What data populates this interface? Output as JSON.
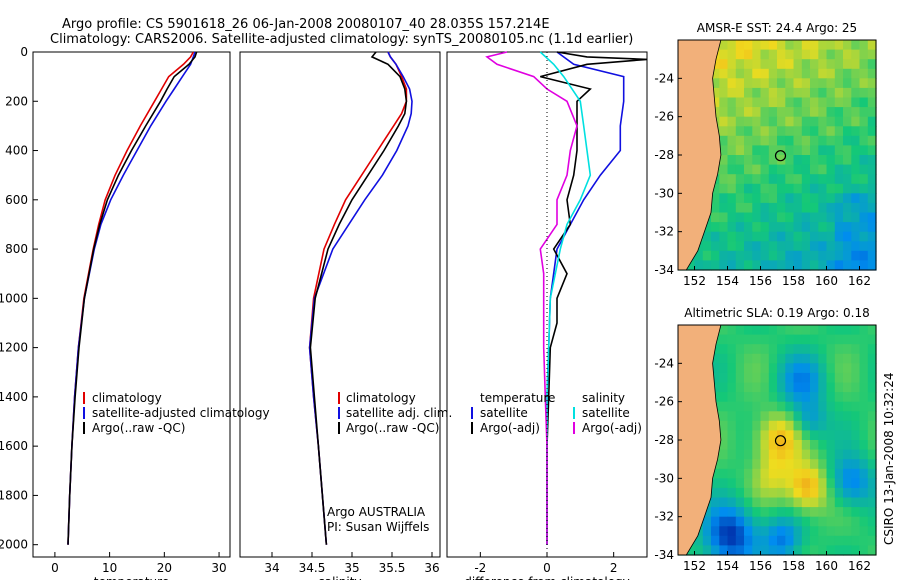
{
  "header": {
    "title_line1": "Argo profile: CS 5901618_26 06-Jan-2008 20080107_40 28.035S 157.214E",
    "title_line2": "Climatology: CARS2006. Satellite-adjusted climatology: synTS_20080105.nc (1.1d earlier)"
  },
  "side_label": "CSIRO 13-Jan-2008 10:32:24",
  "credit": {
    "line1": "Argo AUSTRALIA",
    "line2": "PI: Susan Wijffels"
  },
  "colors": {
    "red": "#e00000",
    "blue": "#1010e0",
    "black": "#000000",
    "cyan": "#00e0e0",
    "magenta": "#e000e0",
    "land": "#f2b07a"
  },
  "chart_data": [
    {
      "type": "line",
      "id": "temperature",
      "xlabel": "temperature",
      "xlim": [
        -4,
        32
      ],
      "ylim": [
        2050,
        0
      ],
      "xticks": [
        0,
        10,
        20,
        30
      ],
      "yticks": [
        0,
        200,
        400,
        600,
        800,
        1000,
        1200,
        1400,
        1600,
        1800,
        2000
      ],
      "depth": [
        0,
        20,
        50,
        100,
        150,
        200,
        300,
        400,
        500,
        600,
        700,
        800,
        1000,
        1200,
        1400,
        1600,
        1800,
        2000
      ],
      "series": [
        {
          "name": "climatology",
          "color": "red",
          "values": [
            25.3,
            24.8,
            23.5,
            20.8,
            19.5,
            18.2,
            15.6,
            13.2,
            11.0,
            9.2,
            8.0,
            7.0,
            5.3,
            4.3,
            3.6,
            3.1,
            2.7,
            2.4
          ]
        },
        {
          "name": "satellite-adjusted climatology",
          "color": "blue",
          "values": [
            25.6,
            25.3,
            24.8,
            23.3,
            21.8,
            20.3,
            17.5,
            15.0,
            12.5,
            10.2,
            8.4,
            7.2,
            5.4,
            4.3,
            3.6,
            3.1,
            2.7,
            2.4
          ]
        },
        {
          "name": "Argo(..raw -QC)",
          "color": "black",
          "values": [
            25.9,
            25.6,
            24.5,
            21.8,
            20.5,
            19.3,
            16.6,
            14.0,
            11.6,
            9.6,
            8.2,
            7.1,
            5.4,
            4.4,
            3.7,
            3.1,
            2.7,
            2.4
          ]
        }
      ],
      "legend": [
        "climatology",
        "satellite-adjusted climatology",
        "Argo(..raw -QC)"
      ]
    },
    {
      "type": "line",
      "id": "salinity",
      "xlabel": "salinity",
      "xlim": [
        33.6,
        36.1
      ],
      "ylim": [
        2050,
        0
      ],
      "xticks": [
        34,
        34.5,
        35,
        35.5,
        36
      ],
      "depth": [
        0,
        20,
        50,
        100,
        150,
        200,
        250,
        300,
        400,
        500,
        600,
        700,
        800,
        1000,
        1200,
        1400,
        1600,
        1800,
        2000
      ],
      "series": [
        {
          "name": "climatology",
          "color": "red",
          "values": [
            35.45,
            35.48,
            35.55,
            35.62,
            35.68,
            35.68,
            35.62,
            35.52,
            35.32,
            35.12,
            34.92,
            34.78,
            34.65,
            34.52,
            34.47,
            34.52,
            34.58,
            34.63,
            34.68
          ]
        },
        {
          "name": "satellite adj. clim.",
          "color": "blue",
          "values": [
            35.45,
            35.48,
            35.55,
            35.64,
            35.72,
            35.75,
            35.74,
            35.7,
            35.56,
            35.38,
            35.16,
            34.96,
            34.76,
            34.53,
            34.47,
            34.52,
            34.58,
            34.63,
            34.68
          ]
        },
        {
          "name": "Argo(..raw -QC)",
          "color": "black",
          "values": [
            35.3,
            35.25,
            35.45,
            35.6,
            35.66,
            35.68,
            35.66,
            35.58,
            35.4,
            35.2,
            35.0,
            34.84,
            34.7,
            34.54,
            34.48,
            34.53,
            34.58,
            34.63,
            34.68
          ]
        }
      ],
      "legend": [
        "climatology",
        "satellite adj. clim.",
        "Argo(..raw -QC)"
      ]
    },
    {
      "type": "line",
      "id": "difference",
      "xlabel": "difference from climatology",
      "xlim": [
        -3,
        3
      ],
      "ylim": [
        2050,
        0
      ],
      "xticks": [
        -2,
        0,
        2
      ],
      "legend_headers": [
        "temperature",
        "salinity"
      ],
      "legend": [
        "satellite",
        "Argo(-adj)",
        "satellite",
        "Argo(-adj)"
      ],
      "series": [
        {
          "name": "temperature satellite",
          "color": "blue",
          "depth": [
            0,
            50,
            100,
            200,
            300,
            400,
            500,
            600,
            800,
            1000,
            1200,
            1400,
            1600,
            1800,
            2000
          ],
          "values": [
            0.3,
            0.8,
            2.3,
            2.3,
            2.2,
            2.2,
            1.6,
            1.1,
            0.3,
            0.1,
            0.05,
            0.0,
            0.0,
            0.0,
            0.0
          ]
        },
        {
          "name": "temperature Argo(-adj)",
          "color": "black",
          "depth": [
            0,
            20,
            30,
            50,
            100,
            150,
            200,
            300,
            400,
            500,
            600,
            700,
            800,
            900,
            1000,
            1100,
            1200,
            1400,
            1600,
            1800,
            2000
          ],
          "values": [
            0.3,
            1.2,
            3.0,
            1.2,
            -0.2,
            1.3,
            0.9,
            0.9,
            0.9,
            0.8,
            0.6,
            0.7,
            0.2,
            0.6,
            0.3,
            0.3,
            0.1,
            0.05,
            0.0,
            0.0,
            0.0
          ]
        },
        {
          "name": "salinity satellite",
          "color": "cyan",
          "depth": [
            0,
            50,
            100,
            200,
            300,
            400,
            500,
            600,
            700,
            800,
            1000,
            1200,
            1400,
            1600,
            1800,
            2000
          ],
          "values": [
            -0.2,
            0.2,
            0.5,
            1.0,
            1.1,
            1.2,
            1.3,
            1.0,
            0.6,
            0.4,
            0.1,
            0.05,
            0.0,
            0.0,
            0.0,
            0.0
          ]
        },
        {
          "name": "salinity Argo(-adj)",
          "color": "magenta",
          "depth": [
            0,
            20,
            50,
            100,
            150,
            200,
            300,
            400,
            500,
            600,
            700,
            800,
            900,
            1000,
            1200,
            1400,
            1600,
            1800,
            2000
          ],
          "values": [
            -1.2,
            -1.8,
            -1.5,
            -0.4,
            0.0,
            0.6,
            0.9,
            0.7,
            0.6,
            0.3,
            0.3,
            -0.2,
            -0.1,
            -0.1,
            -0.1,
            -0.05,
            0.0,
            0.0,
            0.0
          ]
        }
      ]
    },
    {
      "type": "heatmap",
      "id": "sst_map",
      "title": "AMSR-E SST: 24.4 Argo: 25",
      "xlim": [
        151,
        163
      ],
      "ylim": [
        -34,
        -22
      ],
      "xticks": [
        152,
        154,
        156,
        158,
        160,
        162
      ],
      "yticks": [
        -24,
        -26,
        -28,
        -30,
        -32,
        -34
      ],
      "marker": {
        "lon": 157.214,
        "lat": -28.035
      }
    },
    {
      "type": "heatmap",
      "id": "sla_map",
      "title": "Altimetric SLA: 0.19 Argo: 0.18",
      "xlim": [
        151,
        163
      ],
      "ylim": [
        -34,
        -22
      ],
      "xticks": [
        152,
        154,
        156,
        158,
        160,
        162
      ],
      "yticks": [
        -24,
        -26,
        -28,
        -30,
        -32,
        -34
      ],
      "marker": {
        "lon": 157.214,
        "lat": -28.035
      }
    }
  ]
}
